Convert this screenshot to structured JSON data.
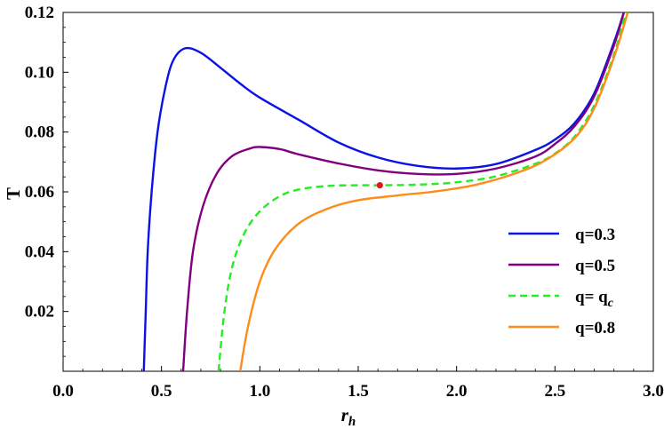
{
  "chart_data": {
    "type": "line",
    "title": "",
    "xlabel": "r",
    "xlabel_sub": "h",
    "ylabel": "T",
    "xlim": [
      0,
      3
    ],
    "ylim": [
      0,
      0.12
    ],
    "x_ticks": [
      "0.0",
      "0.5",
      "1.0",
      "1.5",
      "2.0",
      "2.5",
      "3.0"
    ],
    "y_ticks": [
      "0.02",
      "0.04",
      "0.06",
      "0.08",
      "0.10",
      "0.12"
    ],
    "grid": false,
    "legend_placement": "bottom-right",
    "critical_point": {
      "x": 1.61,
      "y": 0.0622,
      "color": "#e31a1c"
    },
    "series": [
      {
        "name": "q=0.3",
        "color": "#0a12e6",
        "dash": "solid",
        "points": [
          [
            0.41,
            0.0
          ],
          [
            0.42,
            0.02
          ],
          [
            0.43,
            0.04
          ],
          [
            0.45,
            0.06
          ],
          [
            0.48,
            0.08
          ],
          [
            0.52,
            0.095
          ],
          [
            0.56,
            0.104
          ],
          [
            0.62,
            0.108
          ],
          [
            0.7,
            0.1065
          ],
          [
            0.8,
            0.1015
          ],
          [
            0.9,
            0.0962
          ],
          [
            1.0,
            0.0915
          ],
          [
            1.2,
            0.084
          ],
          [
            1.4,
            0.0765
          ],
          [
            1.6,
            0.0715
          ],
          [
            1.8,
            0.0687
          ],
          [
            2.0,
            0.0678
          ],
          [
            2.2,
            0.0693
          ],
          [
            2.4,
            0.074
          ],
          [
            2.5,
            0.0775
          ],
          [
            2.6,
            0.083
          ],
          [
            2.7,
            0.093
          ],
          [
            2.8,
            0.11
          ],
          [
            2.85,
            0.12
          ]
        ]
      },
      {
        "name": "q=0.5",
        "color": "#800080",
        "dash": "solid",
        "points": [
          [
            0.61,
            0.0
          ],
          [
            0.63,
            0.02
          ],
          [
            0.66,
            0.04
          ],
          [
            0.71,
            0.055
          ],
          [
            0.78,
            0.066
          ],
          [
            0.86,
            0.072
          ],
          [
            0.95,
            0.0745
          ],
          [
            1.0,
            0.075
          ],
          [
            1.1,
            0.0743
          ],
          [
            1.2,
            0.0725
          ],
          [
            1.4,
            0.0695
          ],
          [
            1.6,
            0.0672
          ],
          [
            1.8,
            0.066
          ],
          [
            2.0,
            0.066
          ],
          [
            2.2,
            0.0678
          ],
          [
            2.4,
            0.0718
          ],
          [
            2.5,
            0.076
          ],
          [
            2.6,
            0.082
          ],
          [
            2.7,
            0.092
          ],
          [
            2.8,
            0.109
          ],
          [
            2.85,
            0.12
          ]
        ]
      },
      {
        "name": "q= q",
        "name_sub": "c",
        "color": "#22ee22",
        "dash": "dashed",
        "points": [
          [
            0.79,
            0.0
          ],
          [
            0.82,
            0.02
          ],
          [
            0.86,
            0.035
          ],
          [
            0.92,
            0.046
          ],
          [
            1.0,
            0.0535
          ],
          [
            1.1,
            0.0585
          ],
          [
            1.2,
            0.0608
          ],
          [
            1.35,
            0.062
          ],
          [
            1.5,
            0.0622
          ],
          [
            1.61,
            0.0622
          ],
          [
            1.8,
            0.0624
          ],
          [
            2.0,
            0.0632
          ],
          [
            2.2,
            0.0652
          ],
          [
            2.4,
            0.0694
          ],
          [
            2.5,
            0.0728
          ],
          [
            2.6,
            0.0785
          ],
          [
            2.7,
            0.089
          ],
          [
            2.8,
            0.106
          ],
          [
            2.86,
            0.12
          ]
        ]
      },
      {
        "name": "q=0.8",
        "color": "#ff8c1a",
        "dash": "solid",
        "points": [
          [
            0.9,
            0.0
          ],
          [
            0.94,
            0.015
          ],
          [
            1.0,
            0.03
          ],
          [
            1.08,
            0.041
          ],
          [
            1.2,
            0.0495
          ],
          [
            1.35,
            0.0545
          ],
          [
            1.5,
            0.0572
          ],
          [
            1.7,
            0.0588
          ],
          [
            1.9,
            0.0602
          ],
          [
            2.1,
            0.0624
          ],
          [
            2.3,
            0.0662
          ],
          [
            2.45,
            0.0705
          ],
          [
            2.6,
            0.078
          ],
          [
            2.7,
            0.088
          ],
          [
            2.8,
            0.105
          ],
          [
            2.87,
            0.12
          ]
        ]
      }
    ]
  }
}
